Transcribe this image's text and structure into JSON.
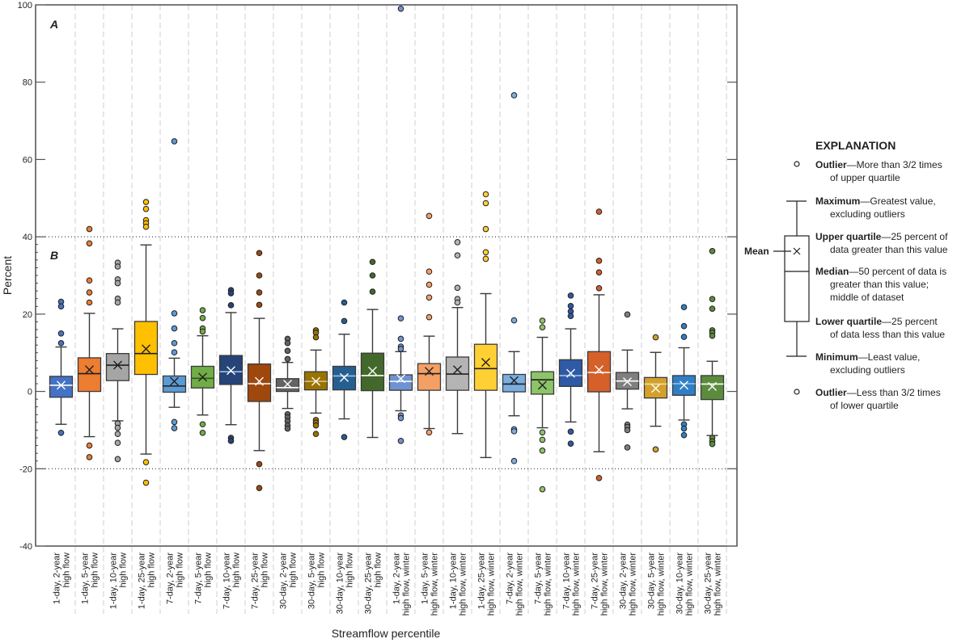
{
  "chart_data": {
    "type": "box",
    "xlabel": "Streamflow percentile",
    "ylabel": "Percent",
    "ylim": [
      -40,
      100
    ],
    "yticks": [
      100,
      80,
      60,
      40,
      20,
      0,
      -20,
      -40
    ],
    "panels": [
      {
        "label": "A",
        "range": [
          40,
          100
        ]
      },
      {
        "label": "B",
        "range": [
          -20,
          40
        ]
      }
    ],
    "categories": [
      {
        "line1": "1-day, 2-year",
        "line2": "high flow",
        "color": "#4472c4",
        "median_color": "#ffffff",
        "mean_color": "#ffffff",
        "q1": -1.5,
        "median": 1.6,
        "q3": 3.9,
        "mean": 1.6,
        "whisker_low": -8.5,
        "whisker_high": 11.5,
        "outliers": [
          23.2,
          22.0,
          15.0,
          12.5,
          -10.7
        ]
      },
      {
        "line1": "1-day, 5-year",
        "line2": "high flow",
        "color": "#ed7d31",
        "median_color": "#231f20",
        "mean_color": "#231f20",
        "q1": 0.0,
        "median": 4.6,
        "q3": 8.7,
        "mean": 5.6,
        "whisker_low": -11.7,
        "whisker_high": 20.2,
        "outliers": [
          42.0,
          38.3,
          28.7,
          25.6,
          23.0,
          -14.0,
          -17.0
        ]
      },
      {
        "line1": "1-day, 10-year",
        "line2": "high flow",
        "color": "#a5a5a5",
        "median_color": "#231f20",
        "mean_color": "#231f20",
        "q1": 2.8,
        "median": 6.8,
        "q3": 9.8,
        "mean": 6.8,
        "whisker_low": -7.6,
        "whisker_high": 16.2,
        "outliers": [
          33.3,
          32.3,
          29.0,
          28.0,
          24.0,
          23.0,
          -8.3,
          -9.4,
          -11.0,
          -13.3,
          -17.5
        ]
      },
      {
        "line1": "1-day, 25-year",
        "line2": "high flow",
        "color": "#ffc000",
        "median_color": "#231f20",
        "mean_color": "#231f20",
        "q1": 4.4,
        "median": 9.8,
        "q3": 18.1,
        "mean": 11.0,
        "whisker_low": -16.2,
        "whisker_high": 37.9,
        "outliers": [
          49.0,
          47.2,
          44.3,
          43.5,
          42.6,
          -18.3,
          -23.6
        ]
      },
      {
        "line1": "7-day, 2-year",
        "line2": "high flow",
        "color": "#5b9bd5",
        "median_color": "#231f20",
        "mean_color": "#231f20",
        "q1": -0.2,
        "median": 1.4,
        "q3": 4.0,
        "mean": 2.6,
        "whisker_low": -4.1,
        "whisker_high": 8.6,
        "outliers": [
          64.7,
          20.2,
          16.3,
          12.5,
          10.1,
          -7.9,
          -9.5
        ]
      },
      {
        "line1": "7-day, 5-year",
        "line2": "high flow",
        "color": "#70ad47",
        "median_color": "#375623",
        "mean_color": "#231f20",
        "q1": 0.9,
        "median": 3.4,
        "q3": 6.5,
        "mean": 3.7,
        "whisker_low": -6.1,
        "whisker_high": 14.4,
        "outliers": [
          21.0,
          19.0,
          16.3,
          15.5,
          -8.5,
          -10.7
        ]
      },
      {
        "line1": "7-day, 10-year",
        "line2": "high flow",
        "color": "#264478",
        "median_color": "#9dc3e6",
        "mean_color": "#ffffff",
        "q1": 1.8,
        "median": 5.1,
        "q3": 9.3,
        "mean": 5.4,
        "whisker_low": -8.6,
        "whisker_high": 20.4,
        "outliers": [
          26.2,
          25.4,
          22.3,
          -12.0,
          -12.8
        ]
      },
      {
        "line1": "7-day, 25-year",
        "line2": "high flow",
        "color": "#9e480e",
        "median_color": "#ffffff",
        "mean_color": "#ffffff",
        "q1": -2.6,
        "median": 2.0,
        "q3": 7.1,
        "mean": 2.6,
        "whisker_low": -15.3,
        "whisker_high": 18.9,
        "outliers": [
          35.8,
          30.0,
          25.6,
          22.4,
          -18.8,
          -25.0
        ]
      },
      {
        "line1": "30-day, 2-year",
        "line2": "high flow",
        "color": "#636363",
        "median_color": "#ffffff",
        "mean_color": "#ffffff",
        "q1": 0.0,
        "median": 1.0,
        "q3": 3.3,
        "mean": 1.9,
        "whisker_low": -4.4,
        "whisker_high": 7.5,
        "outliers": [
          13.6,
          12.5,
          10.5,
          8.4,
          -5.9,
          -6.7,
          -7.7,
          -8.8,
          -9.6
        ]
      },
      {
        "line1": "30-day, 5-year",
        "line2": "high flow",
        "color": "#997300",
        "median_color": "#e2c28a",
        "mean_color": "#ffffff",
        "q1": 0.4,
        "median": 2.6,
        "q3": 5.1,
        "mean": 2.6,
        "whisker_low": -5.6,
        "whisker_high": 10.7,
        "outliers": [
          15.8,
          15.2,
          14.0,
          -7.4,
          -8.1,
          -8.8,
          -11.0
        ]
      },
      {
        "line1": "30-day, 10-year",
        "line2": "high flow",
        "color": "#255e91",
        "median_color": "#9dc3e6",
        "mean_color": "#ffffff",
        "q1": 0.4,
        "median": 4.0,
        "q3": 6.5,
        "mean": 3.6,
        "whisker_low": -7.1,
        "whisker_high": 14.8,
        "outliers": [
          23.0,
          18.2,
          -11.8
        ]
      },
      {
        "line1": "30-day, 25-year",
        "line2": "high flow",
        "color": "#43682b",
        "median_color": "#ffffff",
        "mean_color": "#ffffff",
        "q1": 0.2,
        "median": 4.1,
        "q3": 9.9,
        "mean": 5.3,
        "whisker_low": -11.9,
        "whisker_high": 21.2,
        "outliers": [
          33.5,
          30.0,
          25.8
        ]
      },
      {
        "line1": "1-day, 2-year",
        "line2": "high flow, winter",
        "color": "#6f93d1",
        "median_color": "#ffffff",
        "mean_color": "#ffffff",
        "q1": 0.3,
        "median": 2.6,
        "q3": 4.3,
        "mean": 3.3,
        "whisker_low": -5.0,
        "whisker_high": 10.3,
        "outliers": [
          99.0,
          18.9,
          13.6,
          11.6,
          11.0,
          -6.2,
          -6.9,
          -12.8
        ]
      },
      {
        "line1": "1-day, 5-year",
        "line2": "high flow, winter",
        "color": "#f4a064",
        "median_color": "#231f20",
        "mean_color": "#231f20",
        "q1": 0.3,
        "median": 4.6,
        "q3": 7.2,
        "mean": 5.2,
        "whisker_low": -9.6,
        "whisker_high": 14.3,
        "outliers": [
          45.4,
          31.0,
          27.6,
          24.3,
          19.2,
          -10.6
        ]
      },
      {
        "line1": "1-day, 10-year",
        "line2": "high flow, winter",
        "color": "#b4b4b4",
        "median_color": "#231f20",
        "mean_color": "#231f20",
        "q1": 0.3,
        "median": 4.5,
        "q3": 8.9,
        "mean": 5.6,
        "whisker_low": -10.9,
        "whisker_high": 21.7,
        "outliers": [
          38.6,
          35.2,
          26.8,
          23.9,
          23.0
        ]
      },
      {
        "line1": "1-day, 25-year",
        "line2": "high flow, winter",
        "color": "#ffd034",
        "median_color": "#231f20",
        "mean_color": "#231f20",
        "q1": 0.3,
        "median": 5.9,
        "q3": 12.2,
        "mean": 7.5,
        "whisker_low": -17.1,
        "whisker_high": 25.3,
        "outliers": [
          51.0,
          48.7,
          42.0,
          36.0,
          34.3
        ]
      },
      {
        "line1": "7-day, 2-year",
        "line2": "high flow, winter",
        "color": "#7aaee0",
        "median_color": "#231f20",
        "mean_color": "#231f20",
        "q1": -0.1,
        "median": 1.9,
        "q3": 4.4,
        "mean": 2.8,
        "whisker_low": -6.3,
        "whisker_high": 10.3,
        "outliers": [
          76.6,
          18.4,
          -9.8,
          -10.3,
          -18.0
        ]
      },
      {
        "line1": "7-day, 5-year",
        "line2": "high flow, winter",
        "color": "#8cc568",
        "median_color": "#231f20",
        "mean_color": "#231f20",
        "q1": -0.7,
        "median": 3.0,
        "q3": 5.1,
        "mean": 1.6,
        "whisker_low": -9.4,
        "whisker_high": 14.0,
        "outliers": [
          18.3,
          16.6,
          -10.6,
          -12.5,
          -15.3,
          -25.3
        ]
      },
      {
        "line1": "7-day, 10-year",
        "line2": "high flow, winter",
        "color": "#2e5aa6",
        "median_color": "#9dc3e6",
        "mean_color": "#ffffff",
        "q1": 1.3,
        "median": 4.1,
        "q3": 8.2,
        "mean": 4.7,
        "whisker_low": -7.9,
        "whisker_high": 16.2,
        "outliers": [
          24.8,
          22.1,
          20.7,
          19.5,
          -10.4,
          -13.5
        ]
      },
      {
        "line1": "7-day, 25-year",
        "line2": "high flow, winter",
        "color": "#d5602a",
        "median_color": "#ffffff",
        "mean_color": "#ffffff",
        "q1": -0.1,
        "median": 4.9,
        "q3": 10.3,
        "mean": 5.6,
        "whisker_low": -15.6,
        "whisker_high": 25.0,
        "outliers": [
          46.5,
          33.8,
          30.8,
          26.7,
          -22.4
        ]
      },
      {
        "line1": "30-day, 2-year",
        "line2": "high flow, winter",
        "color": "#7f7f7f",
        "median_color": "#ffffff",
        "mean_color": "#ffffff",
        "q1": 0.6,
        "median": 2.7,
        "q3": 4.9,
        "mean": 2.5,
        "whisker_low": -4.5,
        "whisker_high": 10.7,
        "outliers": [
          19.9,
          -8.6,
          -9.2,
          -10.0,
          -14.5
        ]
      },
      {
        "line1": "30-day, 5-year",
        "line2": "high flow, winter",
        "color": "#d3a12a",
        "median_color": "#f2dba0",
        "mean_color": "#ffffff",
        "q1": -1.7,
        "median": 1.9,
        "q3": 3.6,
        "mean": 0.8,
        "whisker_low": -9.0,
        "whisker_high": 10.1,
        "outliers": [
          14.0,
          -15.0
        ]
      },
      {
        "line1": "30-day, 10-year",
        "line2": "high flow, winter",
        "color": "#2e7fc6",
        "median_color": "#9dc3e6",
        "mean_color": "#ffffff",
        "q1": -1.0,
        "median": 2.0,
        "q3": 4.1,
        "mean": 1.6,
        "whisker_low": -7.4,
        "whisker_high": 11.3,
        "outliers": [
          21.8,
          16.9,
          14.1,
          -8.5,
          -9.6,
          -11.3
        ]
      },
      {
        "line1": "30-day, 25-year",
        "line2": "high flow, winter",
        "color": "#5b8c3c",
        "median_color": "#ffffff",
        "mean_color": "#ffffff",
        "q1": -2.1,
        "median": 1.9,
        "q3": 4.1,
        "mean": 1.3,
        "whisker_low": -11.4,
        "whisker_high": 7.8,
        "outliers": [
          36.3,
          23.9,
          21.4,
          15.8,
          15.2,
          14.4,
          -12.0,
          -12.9,
          -13.6
        ]
      }
    ]
  },
  "legend": {
    "title": "EXPLANATION",
    "mean_label": "Mean",
    "items": [
      {
        "term": "Outlier",
        "text": "—More than 3/2 times",
        "cont": "of upper quartile"
      },
      {
        "term": "Maximum",
        "text": "—Greatest value,",
        "cont": "excluding outliers"
      },
      {
        "term": "Upper quartile",
        "text": "—25 percent of",
        "cont": "data greater than this value"
      },
      {
        "term": "Median",
        "text": "—50 percent of data is",
        "cont": "greater than this value;",
        "cont2": "middle of dataset"
      },
      {
        "term": "Lower quartile",
        "text": "—25 percent",
        "cont": "of data less than this value"
      },
      {
        "term": "Minimum",
        "text": "—Least value,",
        "cont": "excluding outliers"
      },
      {
        "term": "Outlier",
        "text": "—Less than 3/2 times",
        "cont": "of lower quartile"
      }
    ]
  }
}
